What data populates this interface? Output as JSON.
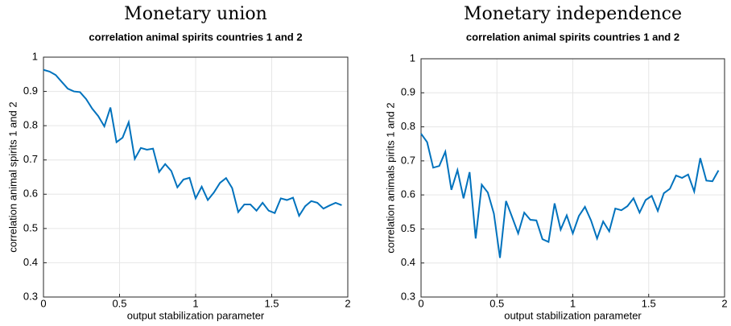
{
  "chart_data": [
    {
      "type": "line",
      "title": "Monetary union",
      "subtitle": "correlation animal spirits countries 1 and 2",
      "xlabel": "output stabilization parameter",
      "ylabel": "correlation animal spirits 1 and 2",
      "x": [
        0,
        0.04,
        0.08,
        0.12,
        0.16,
        0.2,
        0.24,
        0.28,
        0.32,
        0.36,
        0.4,
        0.44,
        0.48,
        0.52,
        0.56,
        0.6,
        0.64,
        0.68,
        0.72,
        0.76,
        0.8,
        0.84,
        0.88,
        0.92,
        0.96,
        1,
        1.04,
        1.08,
        1.12,
        1.16,
        1.2,
        1.24,
        1.28,
        1.32,
        1.36,
        1.4,
        1.44,
        1.48,
        1.52,
        1.56,
        1.6,
        1.64,
        1.68,
        1.72,
        1.76,
        1.8,
        1.84,
        1.88,
        1.92,
        1.96
      ],
      "values": [
        0.963,
        0.958,
        0.948,
        0.928,
        0.908,
        0.9,
        0.898,
        0.878,
        0.85,
        0.828,
        0.798,
        0.853,
        0.752,
        0.765,
        0.81,
        0.703,
        0.735,
        0.73,
        0.733,
        0.665,
        0.688,
        0.668,
        0.62,
        0.643,
        0.648,
        0.588,
        0.622,
        0.583,
        0.605,
        0.633,
        0.647,
        0.618,
        0.548,
        0.57,
        0.57,
        0.552,
        0.575,
        0.552,
        0.545,
        0.588,
        0.583,
        0.59,
        0.537,
        0.565,
        0.58,
        0.575,
        0.558,
        0.567,
        0.575,
        0.568
      ],
      "color": "#0072bd",
      "xlim": [
        0,
        2
      ],
      "xticks": [
        0,
        0.5,
        1,
        1.5,
        2
      ],
      "ylim": [
        0.3,
        1
      ],
      "yticks": [
        0.3,
        0.4,
        0.5,
        0.6,
        0.7,
        0.8,
        0.9,
        1
      ],
      "grid": true
    },
    {
      "type": "line",
      "title": "Monetary independence",
      "subtitle": "correlation animal spirits countries 1 and 2",
      "xlabel": "output stabilization parameter",
      "ylabel": "correlation animals pirits 1 and 2",
      "x": [
        0,
        0.04,
        0.08,
        0.12,
        0.16,
        0.2,
        0.24,
        0.28,
        0.32,
        0.36,
        0.4,
        0.44,
        0.48,
        0.52,
        0.56,
        0.6,
        0.64,
        0.68,
        0.72,
        0.76,
        0.8,
        0.84,
        0.88,
        0.92,
        0.96,
        1,
        1.04,
        1.08,
        1.12,
        1.16,
        1.2,
        1.24,
        1.28,
        1.32,
        1.36,
        1.4,
        1.44,
        1.48,
        1.52,
        1.56,
        1.6,
        1.64,
        1.68,
        1.72,
        1.76,
        1.8,
        1.84,
        1.88,
        1.92,
        1.96
      ],
      "values": [
        0.78,
        0.755,
        0.68,
        0.685,
        0.727,
        0.615,
        0.673,
        0.59,
        0.667,
        0.472,
        0.63,
        0.607,
        0.545,
        0.415,
        0.582,
        0.535,
        0.487,
        0.548,
        0.527,
        0.525,
        0.47,
        0.462,
        0.575,
        0.498,
        0.54,
        0.487,
        0.538,
        0.565,
        0.525,
        0.472,
        0.522,
        0.493,
        0.56,
        0.555,
        0.567,
        0.59,
        0.548,
        0.585,
        0.597,
        0.553,
        0.605,
        0.618,
        0.657,
        0.65,
        0.66,
        0.61,
        0.708,
        0.642,
        0.64,
        0.672
      ],
      "color": "#0072bd",
      "xlim": [
        0,
        2
      ],
      "xticks": [
        0,
        0.5,
        1,
        1.5,
        2
      ],
      "ylim": [
        0.3,
        1
      ],
      "yticks": [
        0.3,
        0.4,
        0.5,
        0.6,
        0.7,
        0.8,
        0.9,
        1
      ],
      "grid": true
    }
  ]
}
